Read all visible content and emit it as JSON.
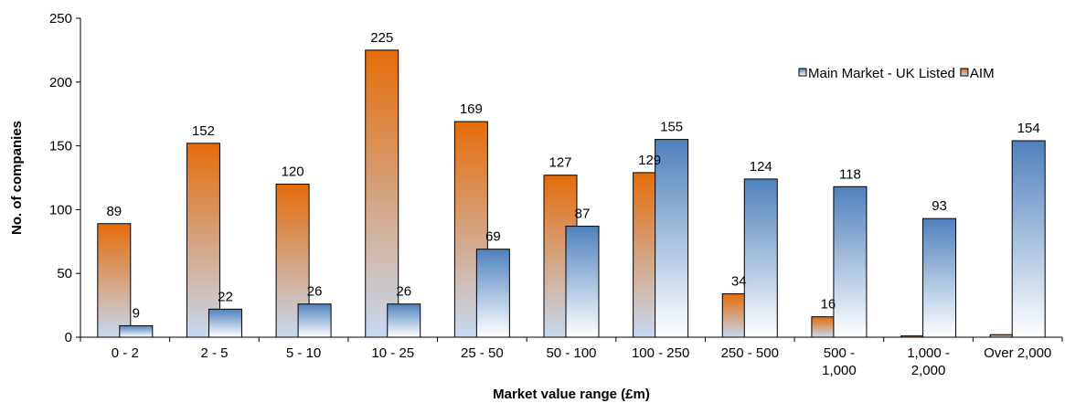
{
  "chart_data": {
    "type": "bar",
    "categories": [
      [
        "0 - 2"
      ],
      [
        "2 - 5"
      ],
      [
        "5 - 10"
      ],
      [
        "10 - 25"
      ],
      [
        "25 - 50"
      ],
      [
        "50 - 100"
      ],
      [
        "100 - 250"
      ],
      [
        "250 - 500"
      ],
      [
        "500 -",
        "1,000"
      ],
      [
        "1,000 -",
        "2,000"
      ],
      [
        "Over 2,000"
      ]
    ],
    "series": [
      {
        "name": "AIM",
        "color": "#e46c0a",
        "values": [
          89,
          152,
          120,
          225,
          169,
          127,
          129,
          34,
          16,
          1,
          2
        ],
        "labels": [
          "89",
          "152",
          "120",
          "225",
          "169",
          "127",
          "129",
          "34",
          "16",
          "",
          ""
        ]
      },
      {
        "name": "Main Market - UK Listed",
        "color": "#4f81bd",
        "values": [
          9,
          22,
          26,
          26,
          69,
          87,
          155,
          124,
          118,
          93,
          154
        ],
        "labels": [
          "9",
          "22",
          "26",
          "26",
          "69",
          "87",
          "155",
          "124",
          "118",
          "93",
          "154"
        ]
      }
    ],
    "xlabel": "Market value range (£m)",
    "ylabel": "No. of companies",
    "ylim": [
      0,
      250
    ],
    "yticks": [
      "0",
      "50",
      "100",
      "150",
      "200",
      "250"
    ],
    "legend_position": "top-right",
    "legend_order": [
      "Main Market - UK Listed",
      "AIM"
    ],
    "grid": false
  }
}
